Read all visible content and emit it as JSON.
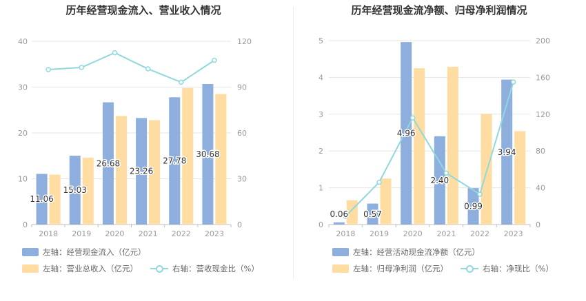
{
  "colors": {
    "bar_primary": "#8eaedd",
    "bar_secondary": "#fedca2",
    "line": "#8fd8de",
    "axis_text": "#999999",
    "grid": "#e6e6e6",
    "title": "#333333"
  },
  "chart_data": [
    {
      "type": "bar",
      "title": "历年经营现金流入、营业收入情况",
      "categories": [
        "2018",
        "2019",
        "2020",
        "2021",
        "2022",
        "2023"
      ],
      "left_axis": {
        "min": 0,
        "max": 40,
        "ticks": [
          "0",
          "10",
          "20",
          "30",
          "40"
        ]
      },
      "right_axis": {
        "min": 0,
        "max": 120,
        "ticks": [
          "0",
          "30",
          "60",
          "90",
          "120"
        ]
      },
      "series": [
        {
          "name": "左轴：经营现金流入（亿元）",
          "kind": "bar",
          "axis": "left",
          "values": [
            11.06,
            15.03,
            26.68,
            23.26,
            27.78,
            30.68
          ],
          "labels": [
            "11.06",
            "15.03",
            "26.68",
            "23.26",
            "27.78",
            "30.68"
          ]
        },
        {
          "name": "左轴：营业总收入（亿元）",
          "kind": "bar",
          "axis": "left",
          "values": [
            10.9,
            14.6,
            23.7,
            22.8,
            29.8,
            28.5
          ]
        },
        {
          "name": "右轴：营收现金比（%）",
          "kind": "line",
          "axis": "right",
          "values": [
            101.5,
            102.9,
            112.5,
            102.0,
            93.2,
            107.6
          ]
        }
      ]
    },
    {
      "type": "bar",
      "title": "历年经营现金流净额、归母净利润情况",
      "categories": [
        "2018",
        "2019",
        "2020",
        "2021",
        "2022",
        "2023"
      ],
      "left_axis": {
        "min": 0,
        "max": 5,
        "ticks": [
          "0",
          "1",
          "2",
          "3",
          "4",
          "5"
        ]
      },
      "right_axis": {
        "min": 0,
        "max": 200,
        "ticks": [
          "0",
          "40",
          "80",
          "120",
          "160",
          "200"
        ]
      },
      "series": [
        {
          "name": "左轴：经营活动现金流净额（亿元）",
          "kind": "bar",
          "axis": "left",
          "values": [
            0.06,
            0.57,
            4.96,
            2.4,
            0.99,
            3.94
          ],
          "labels": [
            "0.06",
            "0.57",
            "4.96",
            "2.40",
            "0.99",
            "3.94"
          ]
        },
        {
          "name": "左轴：归母净利润（亿元）",
          "kind": "bar",
          "axis": "left",
          "values": [
            0.66,
            1.25,
            4.25,
            4.29,
            3.01,
            2.54
          ]
        },
        {
          "name": "右轴：净现比（%）",
          "kind": "line",
          "axis": "right",
          "values": [
            9,
            46,
            116,
            56,
            33,
            155
          ]
        }
      ]
    }
  ]
}
